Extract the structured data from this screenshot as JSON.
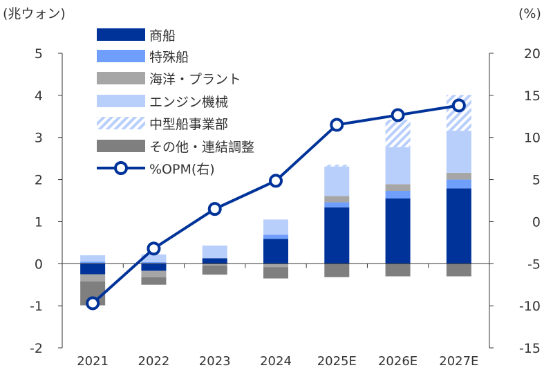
{
  "chart_data": {
    "type": "bar",
    "stacked": true,
    "left_unit_label": "(兆ウォン)",
    "right_unit_label": "(%)",
    "categories": [
      "2021",
      "2022",
      "2023",
      "2024",
      "2025E",
      "2026E",
      "2027E"
    ],
    "ylim": [
      -2,
      5
    ],
    "y2lim": [
      -15,
      20
    ],
    "yticks": [
      -2,
      -1,
      0,
      1,
      2,
      3,
      4,
      5
    ],
    "y2ticks": [
      -15,
      -10,
      -5,
      0,
      5,
      10,
      15,
      20
    ],
    "grid": false,
    "legend_position": "top-left",
    "series": [
      {
        "name": "商船",
        "color": "#003399",
        "values": [
          -0.25,
          -0.17,
          0.13,
          0.59,
          1.34,
          1.55,
          1.79
        ]
      },
      {
        "name": "特殊船",
        "color": "#6f9ffb",
        "values": [
          0.05,
          0.04,
          0,
          0.1,
          0.12,
          0.18,
          0.21
        ]
      },
      {
        "name": "海洋・プラント",
        "color": "#a6a6a6",
        "values": [
          -0.17,
          -0.15,
          -0.04,
          -0.08,
          0.15,
          0.16,
          0.16
        ]
      },
      {
        "name": "エンジン機械",
        "color": "#b8cffc",
        "values": [
          0.15,
          0.18,
          0.3,
          0.36,
          0.7,
          0.88,
          1.0
        ]
      },
      {
        "name": "中型船事業部",
        "color": "#b8cffc",
        "hatched": true,
        "values": [
          0,
          0,
          0,
          0,
          0.04,
          0.65,
          0.85
        ]
      },
      {
        "name": "その他・連結調整",
        "color": "#7f7f7f",
        "values": [
          -0.57,
          -0.18,
          -0.22,
          -0.27,
          -0.32,
          -0.3,
          -0.3
        ]
      }
    ],
    "line": {
      "name": "%OPM(右)",
      "color": "#003399",
      "axis": "right",
      "values": [
        -9.7,
        -3.2,
        1.5,
        4.85,
        11.5,
        12.65,
        13.8
      ]
    }
  }
}
